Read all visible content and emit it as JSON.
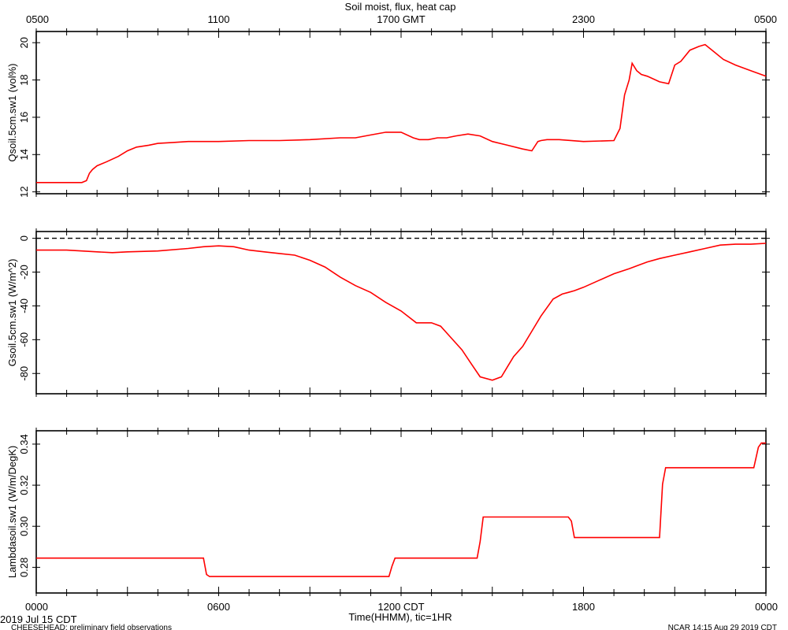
{
  "title": "Soil moist, flux, heat cap",
  "top_axis": {
    "labels": [
      "0500",
      "1100",
      "1700 GMT",
      "2300",
      "0500"
    ]
  },
  "bottom_axis": {
    "labels": [
      "0000",
      "0600",
      "1200 CDT",
      "1800",
      "0000"
    ],
    "xlabel": "Time(HHMM), tic=1HR"
  },
  "footer": {
    "date": "2019 Jul 15 CDT",
    "project": "CHEESEHEAD: preliminary field observations",
    "credit": "NCAR 14:15 Aug 29 2019 CDT"
  },
  "colors": {
    "series": "#ff0000",
    "axes": "#000000"
  },
  "chart_data": [
    {
      "type": "line",
      "ylabel": "Qsoil.5cm.sw1 (vol%)",
      "xlim": [
        0,
        24
      ],
      "ylim": [
        11.9,
        20.6
      ],
      "yticks": [
        12,
        14,
        16,
        18,
        20
      ],
      "x": [
        0,
        0.5,
        1.0,
        1.5,
        1.65,
        1.75,
        1.85,
        2.0,
        2.3,
        2.7,
        3.0,
        3.3,
        3.7,
        4.0,
        4.5,
        5.0,
        6.0,
        7.0,
        8.0,
        9.0,
        10.0,
        10.5,
        11.0,
        11.5,
        12.0,
        12.4,
        12.6,
        12.9,
        13.2,
        13.5,
        13.8,
        14.2,
        14.6,
        15.0,
        15.5,
        16.0,
        16.3,
        16.5,
        16.6,
        16.8,
        17.2,
        18.0,
        19.0,
        19.2,
        19.35,
        19.5,
        19.6,
        19.75,
        19.9,
        20.1,
        20.5,
        20.8,
        21.0,
        21.2,
        21.5,
        21.8,
        22.0,
        22.3,
        22.6,
        23.0,
        23.5,
        24.0
      ],
      "y": [
        12.5,
        12.5,
        12.5,
        12.5,
        12.6,
        13.0,
        13.2,
        13.4,
        13.6,
        13.9,
        14.2,
        14.4,
        14.5,
        14.6,
        14.65,
        14.7,
        14.7,
        14.75,
        14.75,
        14.8,
        14.9,
        14.9,
        15.05,
        15.2,
        15.2,
        14.9,
        14.8,
        14.8,
        14.9,
        14.9,
        15.0,
        15.1,
        15.0,
        14.7,
        14.5,
        14.3,
        14.2,
        14.7,
        14.75,
        14.8,
        14.8,
        14.7,
        14.75,
        15.4,
        17.2,
        18.0,
        18.9,
        18.5,
        18.3,
        18.2,
        17.9,
        17.8,
        18.8,
        19.0,
        19.6,
        19.8,
        19.9,
        19.5,
        19.1,
        18.8,
        18.5,
        18.2
      ]
    },
    {
      "type": "line",
      "ylabel": "Gsoil.5cm.sw1 (W/m^2)",
      "xlim": [
        0,
        24
      ],
      "ylim": [
        -92,
        4
      ],
      "yticks": [
        0,
        -20,
        -40,
        -60,
        -80
      ],
      "reference_line": 0,
      "x": [
        0,
        1,
        2,
        2.5,
        3,
        4,
        5,
        5.5,
        6,
        6.5,
        7,
        7.5,
        8,
        8.5,
        9,
        9.5,
        10,
        10.5,
        11,
        11.5,
        12,
        12.5,
        12.8,
        13,
        13.3,
        13.6,
        14,
        14.3,
        14.6,
        15,
        15.3,
        15.5,
        15.7,
        16,
        16.3,
        16.6,
        17,
        17.3,
        17.5,
        17.7,
        18,
        18.5,
        19,
        19.5,
        19.8,
        20.1,
        20.5,
        21,
        21.5,
        22,
        22.5,
        23,
        23.5,
        24
      ],
      "y": [
        -7,
        -7,
        -8,
        -8.5,
        -8,
        -7.5,
        -6,
        -5,
        -4.5,
        -5,
        -7,
        -8,
        -9,
        -10,
        -13,
        -17,
        -23,
        -28,
        -32,
        -38,
        -43,
        -50,
        -50,
        -50,
        -52,
        -58,
        -66,
        -74,
        -82,
        -84,
        -82,
        -76,
        -70,
        -64,
        -55,
        -46,
        -36,
        -33,
        -32,
        -31,
        -29,
        -25,
        -21,
        -18,
        -16,
        -14,
        -12,
        -10,
        -8,
        -6,
        -4,
        -3.5,
        -3.5,
        -3
      ]
    },
    {
      "type": "line",
      "ylabel": "Lambdasoil.sw1 (W/m/DegK)",
      "xlim": [
        0,
        24
      ],
      "ylim": [
        0.2675,
        0.3465
      ],
      "yticks": [
        0.28,
        0.3,
        0.32,
        0.34
      ],
      "x": [
        0,
        5.5,
        5.6,
        5.7,
        11.6,
        11.7,
        11.8,
        14.5,
        14.6,
        14.7,
        17.5,
        17.6,
        17.7,
        20.5,
        20.6,
        20.7,
        23.6,
        23.75,
        23.85,
        24
      ],
      "y": [
        0.2845,
        0.2845,
        0.2765,
        0.2755,
        0.2755,
        0.2805,
        0.2845,
        0.2845,
        0.2925,
        0.3045,
        0.3045,
        0.3025,
        0.2945,
        0.2945,
        0.3205,
        0.3285,
        0.3285,
        0.3385,
        0.3405,
        0.3405
      ]
    }
  ]
}
